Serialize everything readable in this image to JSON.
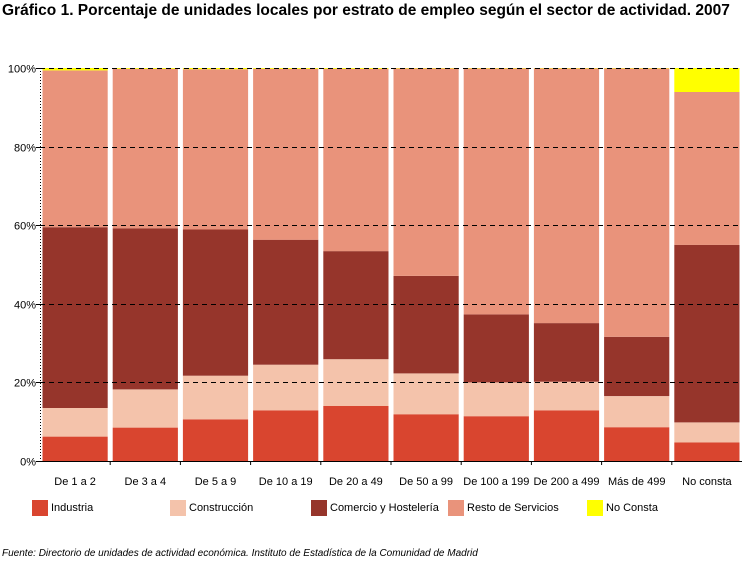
{
  "title": "Gráfico 1. Porcentaje de unidades locales por estrato de empleo según el sector de actividad. 2007",
  "source": "Fuente: Directorio de unidades de actividad económica. Instituto de Estadística de la Comunidad de Madrid",
  "chart_data": {
    "type": "bar",
    "stacked": true,
    "categories": [
      "De 1 a 2",
      "De 3 a 4",
      "De 5 a 9",
      "De 10 a 19",
      "De 20 a 49",
      "De 50 a 99",
      "De 100 a 199",
      "De 200 a 499",
      "Más de 499",
      "No consta"
    ],
    "series": [
      {
        "name": "Industria",
        "color": "#d9452f",
        "values": [
          6.2,
          8.5,
          10.6,
          12.9,
          14.0,
          11.9,
          11.4,
          12.9,
          8.6,
          4.7
        ]
      },
      {
        "name": "Construcción",
        "color": "#f4c3ab",
        "values": [
          7.3,
          9.7,
          11.1,
          11.6,
          11.9,
          10.4,
          8.6,
          7.3,
          7.9,
          5.1
        ]
      },
      {
        "name": "Comercio y Hostelería",
        "color": "#96352b",
        "values": [
          46.0,
          41.0,
          37.2,
          31.8,
          27.5,
          24.8,
          17.3,
          14.9,
          15.1,
          45.2
        ]
      },
      {
        "name": "Resto de Servicios",
        "color": "#e9937b",
        "values": [
          39.9,
          40.6,
          40.8,
          43.5,
          46.4,
          52.8,
          62.6,
          64.8,
          68.3,
          38.9
        ]
      },
      {
        "name": "No Consta",
        "color": "#ffff00",
        "values": [
          0.6,
          0.2,
          0.3,
          0.2,
          0.2,
          0.1,
          0.1,
          0.1,
          0.1,
          6.1
        ]
      }
    ],
    "y_ticks": [
      "0%",
      "20%",
      "40%",
      "60%",
      "80%",
      "100%"
    ],
    "ylim": [
      0,
      100
    ],
    "grid": true,
    "legend_position": "bottom"
  }
}
